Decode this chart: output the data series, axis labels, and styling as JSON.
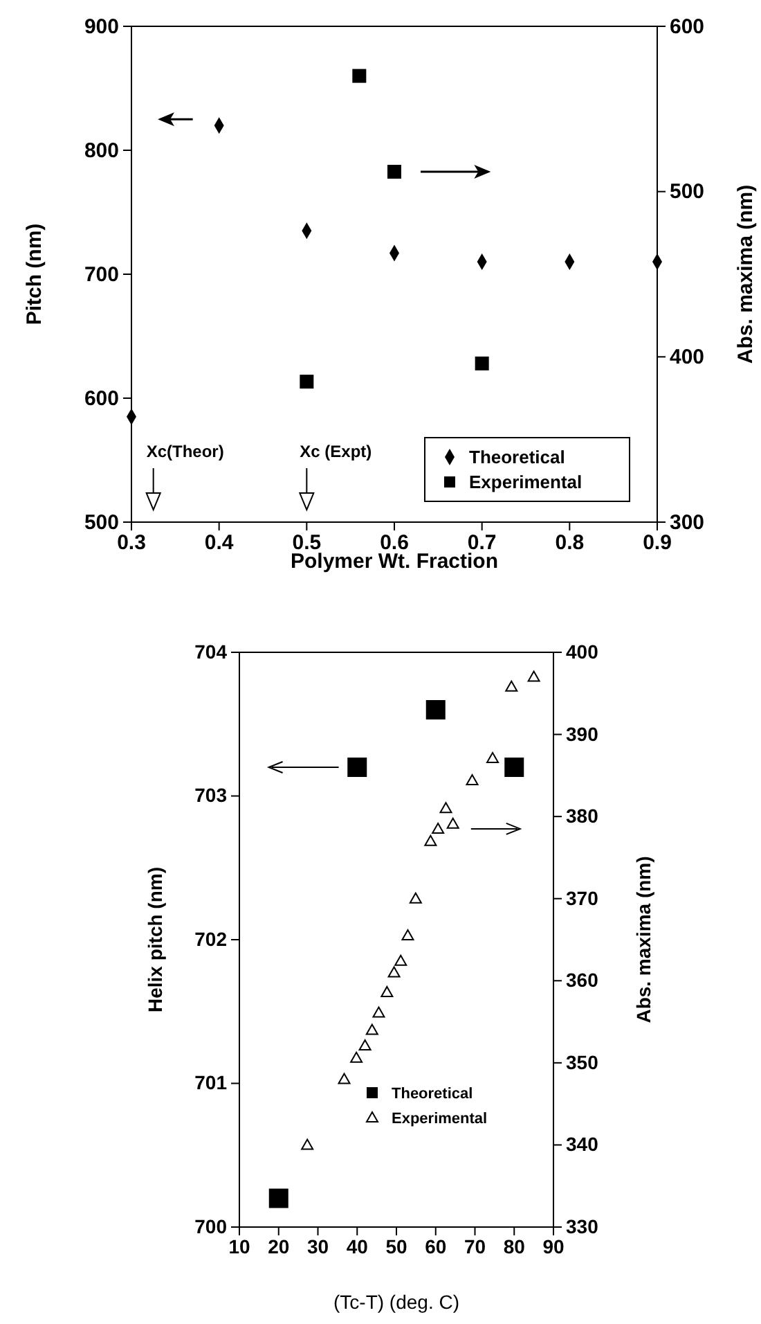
{
  "chart_data": [
    {
      "type": "scatter",
      "xlabel": "Polymer Wt. Fraction",
      "ylabel": "Pitch (nm)",
      "y2label": "Abs. maxima (nm)",
      "xlim": [
        0.3,
        0.9
      ],
      "xticks": [
        0.3,
        0.4,
        0.5,
        0.6,
        0.7,
        0.8,
        0.9
      ],
      "ylim": [
        500,
        900
      ],
      "yticks": [
        500,
        600,
        700,
        800,
        900
      ],
      "y2lim": [
        300,
        600
      ],
      "y2ticks": [
        300,
        400,
        500,
        600
      ],
      "legend": "bottom right",
      "series": [
        {
          "name": "Theoretical",
          "color": "#000000",
          "marker": "diamond",
          "x": [
            0.3,
            0.4,
            0.5,
            0.6,
            0.7,
            0.8,
            0.9
          ],
          "values": [
            585,
            820,
            735,
            717,
            710,
            710,
            710
          ]
        },
        {
          "name": "Experimental",
          "color": "#000000",
          "marker": "square",
          "axis": "y2",
          "x": [
            0.5,
            0.56,
            0.6,
            0.7
          ],
          "values": [
            385,
            570,
            512,
            396
          ]
        }
      ],
      "annotations": [
        "Xc(Theor)",
        "Xc (Expt)"
      ]
    },
    {
      "type": "scatter",
      "xlabel": "(Tc-T) (deg. C)",
      "ylabel": "Helix pitch (nm)",
      "y2label": "Abs. maxima (nm)",
      "xlim": [
        10,
        90
      ],
      "xticks": [
        10,
        20,
        30,
        40,
        50,
        60,
        70,
        80,
        90
      ],
      "ylim": [
        700,
        704
      ],
      "yticks": [
        700,
        701,
        702,
        703,
        704
      ],
      "y2lim": [
        330,
        400
      ],
      "y2ticks": [
        330,
        340,
        350,
        360,
        370,
        380,
        390,
        400
      ],
      "legend": "bottom right",
      "series": [
        {
          "name": "Theoretical",
          "color": "#000000",
          "marker": "square",
          "x": [
            20,
            40,
            60,
            80
          ],
          "values": [
            700.2,
            703.2,
            703.6,
            703.2
          ]
        },
        {
          "name": "Experimental",
          "color": "#000000",
          "marker": "triangle",
          "axis": "y2",
          "x": [
            27.3,
            36.7,
            39.8,
            42.0,
            43.8,
            45.5,
            47.6,
            49.4,
            51.1,
            52.9,
            54.9,
            58.7,
            60.6,
            62.6,
            64.4,
            69.3,
            74.5,
            79.3,
            85.0
          ],
          "values": [
            340.0,
            348.0,
            350.6,
            352.1,
            354.0,
            356.1,
            358.6,
            361.0,
            362.4,
            365.5,
            370.0,
            377.0,
            378.5,
            381.0,
            379.1,
            384.4,
            387.1,
            395.8,
            397.0
          ]
        }
      ]
    }
  ]
}
